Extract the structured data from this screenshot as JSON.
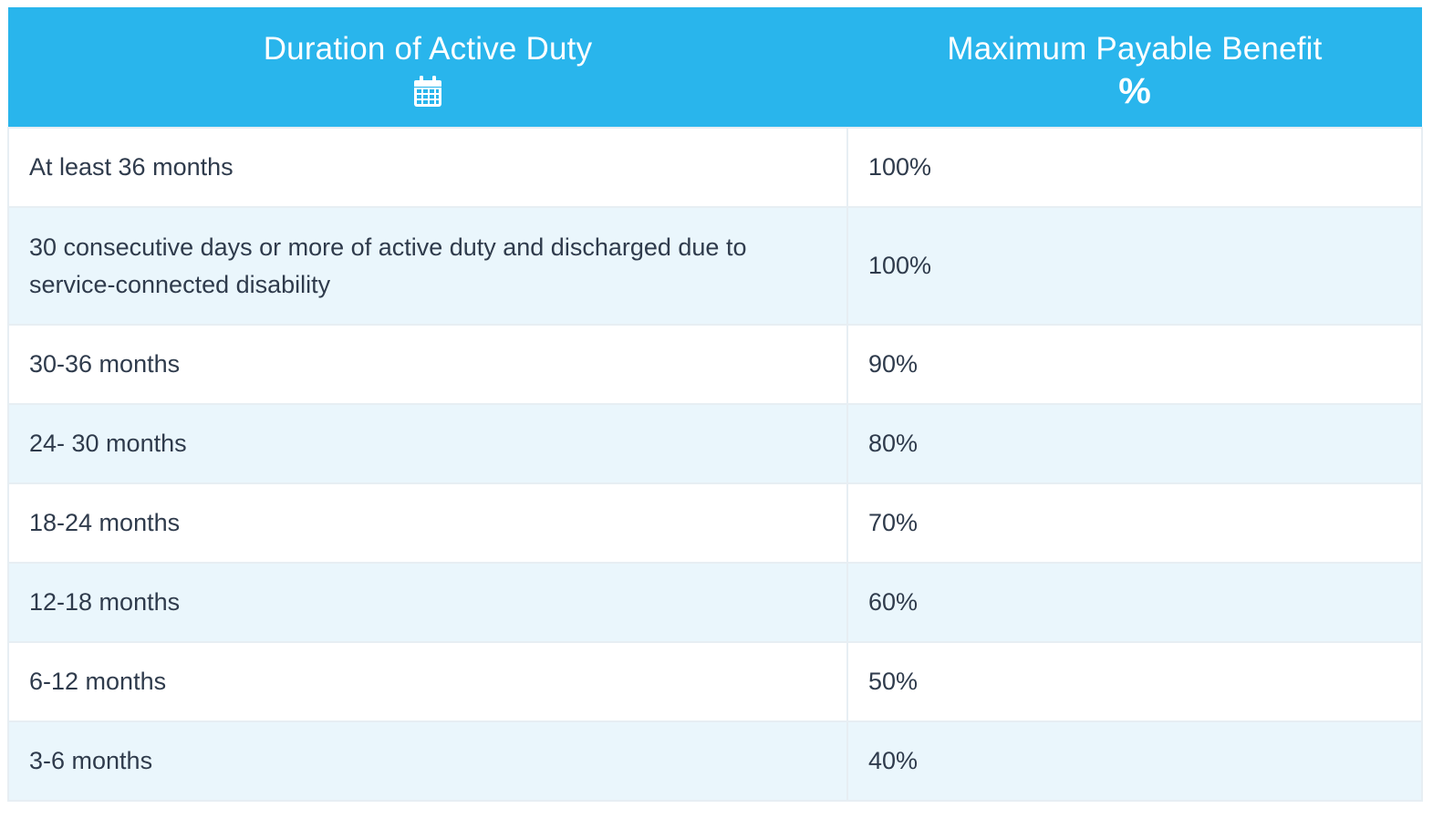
{
  "table": {
    "headers": [
      {
        "label": "Duration of Active Duty",
        "icon": "calendar-icon"
      },
      {
        "label": "Maximum Payable Benefit",
        "icon": "percent-icon",
        "icon_glyph": "%"
      }
    ],
    "rows": [
      {
        "duration": "At least 36 months",
        "benefit": "100%"
      },
      {
        "duration": "30 consecutive days or more of active duty and discharged due to service-connected disability",
        "benefit": "100%"
      },
      {
        "duration": "30-36 months",
        "benefit": "90%"
      },
      {
        "duration": "24- 30 months",
        "benefit": "80%"
      },
      {
        "duration": "18-24 months",
        "benefit": "70%"
      },
      {
        "duration": "12-18 months",
        "benefit": "60%"
      },
      {
        "duration": "6-12 months",
        "benefit": "50%"
      },
      {
        "duration": "3-6 months",
        "benefit": "40%"
      }
    ]
  },
  "colors": {
    "header_bg": "#29b5ec",
    "header_text": "#ffffff",
    "row_alt_bg": "#eaf6fc",
    "row_bg": "#ffffff",
    "body_text": "#2f3b4c",
    "border": "#e7eef3"
  }
}
